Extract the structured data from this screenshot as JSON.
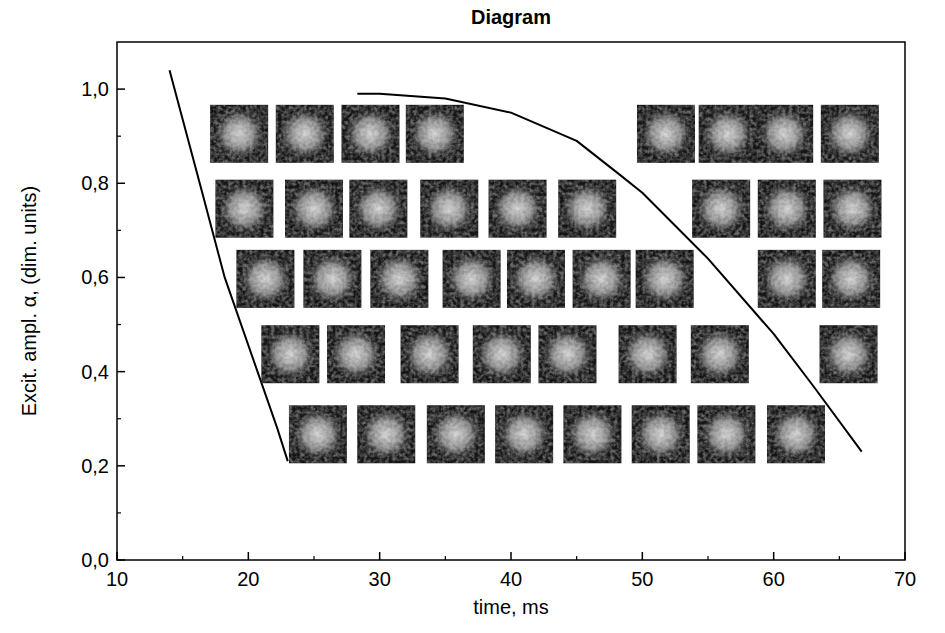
{
  "chart_data": {
    "type": "scatter",
    "title": "Diagram",
    "x_label": "time, ms",
    "y_label": "Excit. ampl. α, (dim. units)",
    "xlim": [
      10,
      70
    ],
    "ylim": [
      0,
      1.1
    ],
    "xticks": [
      10,
      20,
      30,
      40,
      50,
      60,
      70
    ],
    "yticks": [
      {
        "value": 0,
        "label": "0,0"
      },
      {
        "value": 0.2,
        "label": "0,2"
      },
      {
        "value": 0.4,
        "label": "0,4"
      },
      {
        "value": 0.6,
        "label": "0,6"
      },
      {
        "value": 0.8,
        "label": "0,8"
      },
      {
        "value": 1.0,
        "label": "1,0"
      }
    ],
    "grid": false,
    "series": [
      {
        "type": "line",
        "color": "#000000",
        "line_style": "solid",
        "x": [
          14,
          16.3,
          18.2,
          20.7,
          22.2,
          23
        ],
        "values": [
          1.04,
          0.8,
          0.6,
          0.4,
          0.28,
          0.21
        ]
      },
      {
        "type": "line",
        "color": "#000000",
        "line_style": "solid",
        "x": [
          28.3,
          30,
          35,
          40,
          45,
          48.2,
          50,
          55,
          60,
          63,
          66.7
        ],
        "values": [
          0.99,
          0.99,
          0.98,
          0.95,
          0.89,
          0.82,
          0.78,
          0.64,
          0.48,
          0.37,
          0.23
        ]
      },
      {
        "type": "scatter",
        "marker": "image",
        "color": "#ffffff",
        "x": [
          19.3,
          24.3,
          29.3,
          34.2,
          51.8,
          56.5,
          60.8,
          65.8,
          19.7,
          25.0,
          29.9,
          35.3,
          40.5,
          45.8,
          56.0,
          61.0,
          66.0,
          21.3,
          26.4,
          31.5,
          37.0,
          41.9,
          46.9,
          51.7,
          61.0,
          65.9,
          23.2,
          28.2,
          33.8,
          39.3,
          44.3,
          50.4,
          55.9,
          65.7,
          25.3,
          30.5,
          35.8,
          41.0,
          46.2,
          51.4,
          56.4,
          61.7
        ],
        "values": [
          0.905,
          0.905,
          0.905,
          0.905,
          0.905,
          0.905,
          0.905,
          0.905,
          0.746,
          0.746,
          0.746,
          0.746,
          0.746,
          0.746,
          0.746,
          0.746,
          0.746,
          0.597,
          0.597,
          0.597,
          0.597,
          0.597,
          0.597,
          0.597,
          0.597,
          0.597,
          0.437,
          0.437,
          0.437,
          0.437,
          0.437,
          0.437,
          0.437,
          0.437,
          0.267,
          0.267,
          0.267,
          0.267,
          0.267,
          0.267,
          0.267,
          0.267
        ]
      }
    ]
  }
}
